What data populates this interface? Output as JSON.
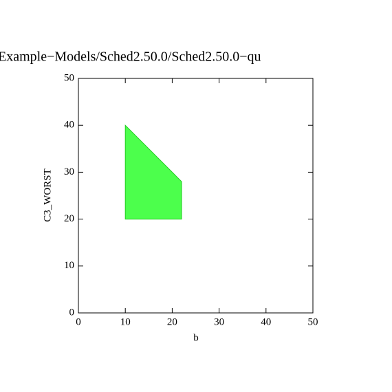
{
  "chart_data": {
    "type": "polygon",
    "title": "Example−Models/Sched2.50.0/Sched2.50.0−qu",
    "xlabel": "b",
    "ylabel": "C3_WORST",
    "x": [
      10,
      22,
      22,
      10
    ],
    "y": [
      40,
      28,
      20,
      20
    ],
    "color": "#4cff4c",
    "xlim": [
      0,
      50
    ],
    "ylim": [
      0,
      50
    ],
    "xticks": [
      0,
      10,
      20,
      30,
      40,
      50
    ],
    "yticks": [
      0,
      10,
      20,
      30,
      40,
      50
    ]
  }
}
